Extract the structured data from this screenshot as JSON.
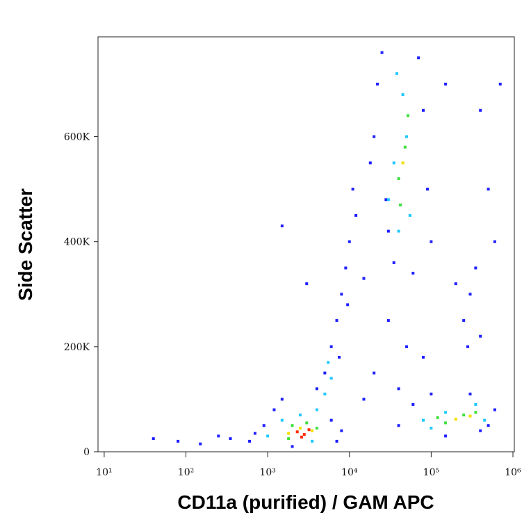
{
  "chart_data": {
    "type": "scatter",
    "xlabel": "CD11a (purified) / GAM APC",
    "ylabel": "Side Scatter",
    "xscale": "log",
    "xlim": [
      8.4,
      1040000
    ],
    "xticks": [
      {
        "value": 10,
        "label": "10¹"
      },
      {
        "value": 100,
        "label": "10²"
      },
      {
        "value": 1000,
        "label": "10³"
      },
      {
        "value": 10000,
        "label": "10⁴"
      },
      {
        "value": 100000,
        "label": "10⁵"
      },
      {
        "value": 1000000,
        "label": "10⁶"
      }
    ],
    "ylim": [
      0,
      790000
    ],
    "yticks": [
      0,
      {
        "value": 200000,
        "label": "200K"
      },
      {
        "value": 400000,
        "label": "400K"
      },
      {
        "value": 600000,
        "label": "600K"
      }
    ],
    "grid": false,
    "series": [
      {
        "color": "#1f1fff",
        "x": [
          600,
          900,
          1200,
          700,
          1500,
          4000,
          5000,
          6000,
          7000,
          350,
          2000,
          8000,
          6000,
          7000,
          8000,
          9000,
          10000,
          7500,
          12000,
          11000,
          9500,
          15000,
          20000,
          22000,
          25000,
          30000,
          35000,
          80000,
          90000,
          70000,
          18000,
          100000,
          60000,
          28000,
          20000,
          30000,
          50000,
          15000,
          40000,
          80000,
          40000,
          60000,
          500000,
          600000,
          100000,
          300000,
          150000,
          400000,
          250000,
          300000,
          350000,
          280000,
          400000,
          200000,
          500000,
          700000,
          400000,
          600000,
          150000,
          40,
          80,
          150,
          250,
          1500,
          3000
        ],
        "y": [
          20000,
          50000,
          80000,
          35000,
          100000,
          120000,
          150000,
          60000,
          20000,
          25000,
          10000,
          40000,
          200000,
          250000,
          300000,
          350000,
          400000,
          180000,
          450000,
          500000,
          280000,
          330000,
          600000,
          700000,
          760000,
          420000,
          360000,
          650000,
          500000,
          750000,
          550000,
          400000,
          340000,
          480000,
          150000,
          250000,
          200000,
          100000,
          120000,
          180000,
          50000,
          90000,
          50000,
          80000,
          110000,
          110000,
          30000,
          40000,
          250000,
          300000,
          350000,
          200000,
          220000,
          320000,
          500000,
          700000,
          650000,
          400000,
          700000,
          25000,
          20000,
          15000,
          30000,
          430000,
          320000
        ]
      },
      {
        "color": "#20c8ff",
        "x": [
          1500,
          2500,
          4000,
          5000,
          1000,
          3500,
          6000,
          5500,
          30000,
          40000,
          50000,
          45000,
          35000,
          55000,
          38000,
          80000,
          150000,
          350000,
          450000,
          100000
        ],
        "y": [
          60000,
          70000,
          80000,
          110000,
          30000,
          20000,
          140000,
          170000,
          480000,
          420000,
          600000,
          680000,
          550000,
          450000,
          720000,
          60000,
          75000,
          90000,
          60000,
          45000
        ]
      },
      {
        "color": "#3ee03e",
        "x": [
          2000,
          3000,
          1800,
          4000,
          40000,
          48000,
          42000,
          52000,
          150000,
          250000,
          350000,
          120000
        ],
        "y": [
          50000,
          55000,
          25000,
          45000,
          520000,
          580000,
          470000,
          640000,
          55000,
          70000,
          75000,
          65000
        ]
      },
      {
        "color": "#f0e000",
        "x": [
          2500,
          3500,
          1800,
          200000,
          300000,
          45000
        ],
        "y": [
          45000,
          40000,
          35000,
          62000,
          68000,
          550000
        ]
      },
      {
        "color": "#ff2a00",
        "x": [
          2300,
          2800,
          3200,
          2600
        ],
        "y": [
          38000,
          33000,
          42000,
          28000
        ]
      }
    ]
  }
}
